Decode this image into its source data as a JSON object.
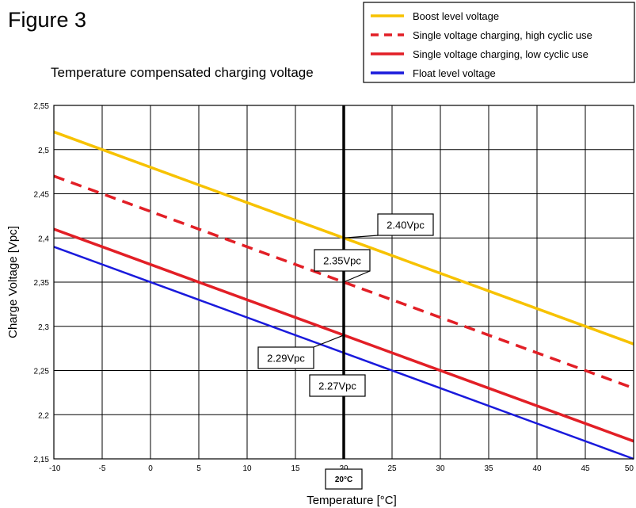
{
  "figure_label": "Figure 3",
  "chart_data": {
    "type": "line",
    "title": "Temperature compensated charging voltage",
    "xlabel": "Temperature [°C]",
    "ylabel": "Charge Voltage [Vpc]",
    "xlim": [
      -10,
      50
    ],
    "ylim": [
      2.15,
      2.55
    ],
    "x_ticks": [
      "-10",
      "-5",
      "0",
      "5",
      "10",
      "15",
      "20",
      "25",
      "30",
      "35",
      "40",
      "45",
      "50"
    ],
    "y_ticks": [
      "2,15",
      "2,2",
      "2,25",
      "2,3",
      "2,35",
      "2,4",
      "2,45",
      "2,5",
      "2,55"
    ],
    "grid": true,
    "legend_position": "top-right",
    "series": [
      {
        "name": "Boost level voltage",
        "color": "#f7c200",
        "style": "solid",
        "x": [
          -10,
          50
        ],
        "y": [
          2.52,
          2.28
        ]
      },
      {
        "name": "Single voltage charging, high cyclic use",
        "color": "#e21f26",
        "style": "dashed",
        "x": [
          -10,
          50
        ],
        "y": [
          2.47,
          2.23
        ]
      },
      {
        "name": "Single voltage charging, low cyclic use",
        "color": "#e21f26",
        "style": "solid",
        "x": [
          -10,
          50
        ],
        "y": [
          2.41,
          2.17
        ]
      },
      {
        "name": "Float level voltage",
        "color": "#1a1adc",
        "style": "solid",
        "x": [
          -10,
          50
        ],
        "y": [
          2.39,
          2.15
        ]
      }
    ],
    "reference_line": {
      "x": 20,
      "label": "20°C"
    },
    "annotations": [
      {
        "label": "2.40Vpc",
        "x": 20,
        "y": 2.4
      },
      {
        "label": "2.35Vpc",
        "x": 20,
        "y": 2.35
      },
      {
        "label": "2.29Vpc",
        "x": 20,
        "y": 2.29
      },
      {
        "label": "2.27Vpc",
        "x": 20,
        "y": 2.27
      }
    ]
  }
}
